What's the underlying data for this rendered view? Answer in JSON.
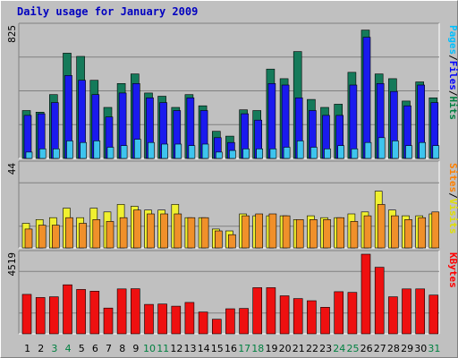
{
  "title": "Daily usage for January 2009",
  "chart_data": [
    {
      "type": "bar",
      "name": "hits-files-pages",
      "axis_max_label": "825",
      "ymax": 825,
      "legend": [
        {
          "label": "Hits",
          "color": "#008040"
        },
        {
          "label": "Files",
          "color": "#0000ff"
        },
        {
          "label": "Pages",
          "color": "#00c0ff"
        }
      ],
      "series": [
        {
          "name": "Hits",
          "color": "#157a5a",
          "values": [
            300,
            290,
            400,
            660,
            640,
            490,
            320,
            470,
            530,
            410,
            390,
            320,
            400,
            330,
            170,
            140,
            305,
            300,
            560,
            500,
            670,
            370,
            320,
            340,
            540,
            805,
            530,
            500,
            360,
            480,
            380
          ]
        },
        {
          "name": "Files",
          "color": "#1a1aee",
          "values": [
            270,
            280,
            350,
            520,
            490,
            400,
            260,
            410,
            470,
            380,
            350,
            300,
            380,
            300,
            130,
            100,
            280,
            240,
            470,
            460,
            380,
            300,
            270,
            270,
            460,
            760,
            470,
            420,
            330,
            460,
            350
          ]
        },
        {
          "name": "Pages",
          "color": "#3ec4ee",
          "values": [
            40,
            60,
            60,
            110,
            100,
            110,
            70,
            80,
            120,
            100,
            90,
            90,
            80,
            90,
            40,
            50,
            60,
            60,
            60,
            70,
            110,
            70,
            60,
            80,
            60,
            100,
            130,
            110,
            80,
            100,
            80
          ]
        }
      ]
    },
    {
      "type": "bar",
      "name": "visits-sites",
      "axis_max_label": "44",
      "ymax": 44,
      "legend": [
        {
          "label": "Visits",
          "color": "#e0e000"
        },
        {
          "label": "Sites",
          "color": "#ff8000"
        }
      ],
      "series": [
        {
          "name": "Visits",
          "color": "#f0f030",
          "values": [
            13,
            15,
            16,
            21,
            16,
            21,
            19,
            23,
            22,
            20,
            20,
            23,
            16,
            16,
            10,
            9,
            18,
            17,
            17,
            17,
            15,
            17,
            16,
            16,
            18,
            19,
            30,
            20,
            17,
            17,
            18
          ]
        },
        {
          "name": "Sites",
          "color": "#f0902a",
          "values": [
            10,
            12,
            12,
            16,
            13,
            15,
            14,
            16,
            20,
            18,
            18,
            18,
            16,
            16,
            9,
            7,
            17,
            18,
            18,
            17,
            15,
            15,
            15,
            16,
            14,
            17,
            23,
            17,
            15,
            16,
            19
          ]
        }
      ]
    },
    {
      "type": "bar",
      "name": "kbytes",
      "axis_max_label": "4519",
      "ymax": 4519,
      "legend": [
        {
          "label": "KBytes",
          "color": "#ff0000"
        }
      ],
      "series": [
        {
          "name": "KBytes",
          "color": "#ee1010",
          "values": [
            2240,
            2060,
            2100,
            2780,
            2520,
            2420,
            1460,
            2550,
            2560,
            1670,
            1690,
            1570,
            1780,
            1240,
            830,
            1420,
            1440,
            2620,
            2620,
            2160,
            2000,
            1880,
            1510,
            2390,
            2350,
            4519,
            3780,
            2100,
            2550,
            2550,
            2200
          ]
        }
      ]
    }
  ],
  "x_labels": [
    {
      "day": "1",
      "color": "#000000"
    },
    {
      "day": "2",
      "color": "#000000"
    },
    {
      "day": "3",
      "color": "#008040"
    },
    {
      "day": "4",
      "color": "#008040"
    },
    {
      "day": "5",
      "color": "#000000"
    },
    {
      "day": "6",
      "color": "#000000"
    },
    {
      "day": "7",
      "color": "#000000"
    },
    {
      "day": "8",
      "color": "#000000"
    },
    {
      "day": "9",
      "color": "#000000"
    },
    {
      "day": "10",
      "color": "#008040"
    },
    {
      "day": "11",
      "color": "#008040"
    },
    {
      "day": "12",
      "color": "#000000"
    },
    {
      "day": "13",
      "color": "#000000"
    },
    {
      "day": "14",
      "color": "#000000"
    },
    {
      "day": "15",
      "color": "#000000"
    },
    {
      "day": "16",
      "color": "#000000"
    },
    {
      "day": "17",
      "color": "#008040"
    },
    {
      "day": "18",
      "color": "#008040"
    },
    {
      "day": "19",
      "color": "#000000"
    },
    {
      "day": "20",
      "color": "#000000"
    },
    {
      "day": "21",
      "color": "#000000"
    },
    {
      "day": "22",
      "color": "#000000"
    },
    {
      "day": "23",
      "color": "#000000"
    },
    {
      "day": "24",
      "color": "#008040"
    },
    {
      "day": "25",
      "color": "#008040"
    },
    {
      "day": "26",
      "color": "#000000"
    },
    {
      "day": "27",
      "color": "#000000"
    },
    {
      "day": "28",
      "color": "#000000"
    },
    {
      "day": "29",
      "color": "#000000"
    },
    {
      "day": "30",
      "color": "#000000"
    },
    {
      "day": "31",
      "color": "#008040"
    }
  ]
}
